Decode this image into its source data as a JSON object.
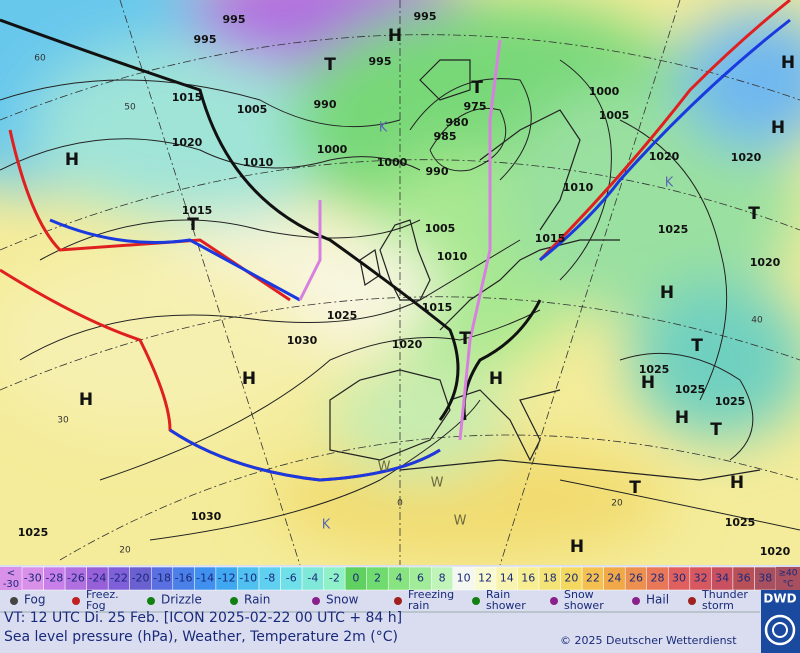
{
  "map": {
    "pressure_labels": [
      "995",
      "995",
      "995",
      "1015",
      "1005",
      "990",
      "1020",
      "1010",
      "1000",
      "995",
      "990",
      "985",
      "980",
      "975",
      "1000",
      "1005",
      "1010",
      "1020",
      "1020",
      "1015",
      "1005",
      "1010",
      "1015",
      "1025",
      "1020",
      "1015",
      "1025",
      "1030",
      "1020",
      "1025",
      "1025",
      "1025",
      "1030",
      "1025",
      "1025",
      "1020",
      "1000"
    ],
    "system_labels": [
      "H",
      "H",
      "H",
      "H",
      "H",
      "H",
      "H",
      "H",
      "H",
      "H",
      "H",
      "H",
      "T",
      "T",
      "T",
      "T",
      "T",
      "T",
      "T",
      "T",
      "K",
      "K",
      "K",
      "W",
      "W",
      "W"
    ],
    "graticule_labels": [
      "60",
      "50",
      "40",
      "30",
      "20",
      "0",
      "20"
    ]
  },
  "temperature_scale": {
    "low_label": [
      "<",
      "-30"
    ],
    "values": [
      -30,
      -28,
      -26,
      -24,
      -22,
      -20,
      -18,
      -16,
      -14,
      -12,
      -10,
      -8,
      -6,
      -4,
      -2,
      0,
      2,
      4,
      6,
      8,
      10,
      12,
      14,
      16,
      18,
      20,
      22,
      24,
      26,
      28,
      30,
      32,
      34,
      36,
      38
    ],
    "colors": [
      "#d890e8",
      "#c880e8",
      "#b070e0",
      "#9860d8",
      "#8060d8",
      "#6a60d0",
      "#5a70e0",
      "#4a80e8",
      "#4090f0",
      "#40a8f0",
      "#50c0f0",
      "#60d0f0",
      "#70e0e8",
      "#80e8d8",
      "#90f0c8",
      "#60d060",
      "#70dc70",
      "#88e480",
      "#a0ec98",
      "#c0f4b8",
      "#f4f8f0",
      "#fafad0",
      "#f8f4b0",
      "#f6ee90",
      "#f4e478",
      "#f4d860",
      "#f4c050",
      "#f0a848",
      "#ec9050",
      "#e87858",
      "#e06060",
      "#d85860",
      "#c85060",
      "#b85058",
      "#a85060"
    ],
    "high_label": [
      "≥40",
      "°C"
    ]
  },
  "symbol_legend": [
    {
      "lines": [
        "Fog"
      ]
    },
    {
      "lines": [
        "Freez.",
        "Fog"
      ]
    },
    {
      "lines": [
        "Drizzle"
      ]
    },
    {
      "lines": [
        "Rain"
      ]
    },
    {
      "lines": [
        "Snow"
      ]
    },
    {
      "lines": [
        "Freezing",
        "rain"
      ]
    },
    {
      "lines": [
        "Rain",
        "shower"
      ]
    },
    {
      "lines": [
        "Snow",
        "shower"
      ]
    },
    {
      "lines": [
        "Hail"
      ]
    },
    {
      "lines": [
        "Thunder",
        "storm"
      ]
    }
  ],
  "footer": {
    "valid_time": "VT: 12 UTC Di.  25 Feb. [ICON 2025-02-22  00 UTC + 84 h]",
    "description": "Sea level pressure (hPa), Weather, Temperature 2m (°C)",
    "copyright": "© 2025 Deutscher Wetterdienst",
    "logo": "DWD"
  }
}
